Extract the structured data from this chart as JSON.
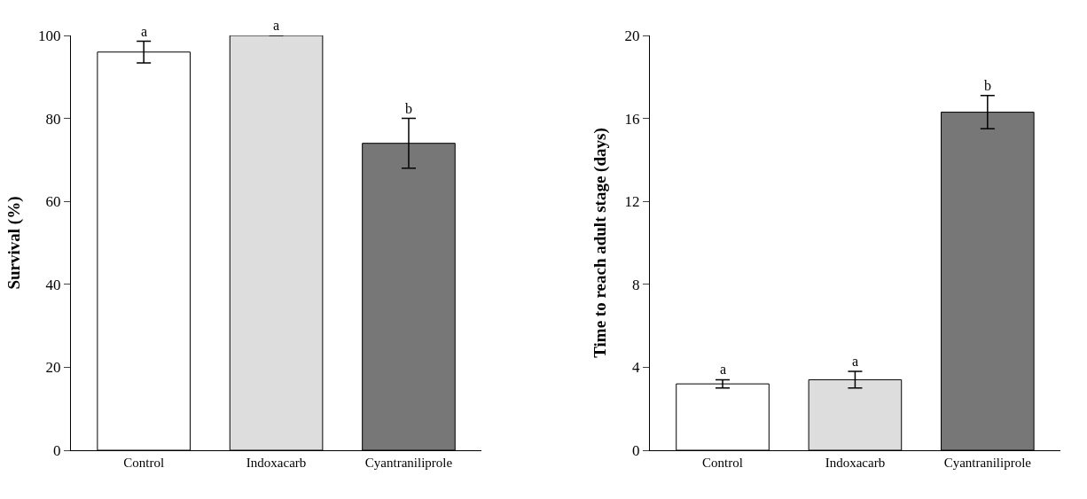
{
  "chart_data": [
    {
      "type": "bar",
      "ylabel": "Survival (%)",
      "categories": [
        "Control",
        "Indoxacarb",
        "Cyantraniliprole"
      ],
      "values": [
        96,
        100,
        74
      ],
      "colors": [
        "#ffffff",
        "#dddddd",
        "#777777"
      ],
      "errors": [
        2.6,
        null,
        6
      ],
      "ylim": [
        0,
        100
      ],
      "yticks": [
        0,
        20,
        40,
        60,
        80,
        100
      ],
      "annotations": [
        {
          "text": "a",
          "x": "Control",
          "y": 98.6
        },
        {
          "text": "a",
          "x": "Indoxacarb",
          "y": 100
        },
        {
          "text": "b",
          "x": "Cyantraniliprole",
          "y": 80
        }
      ]
    },
    {
      "type": "bar",
      "ylabel": "Time to reach adult stage (days)",
      "categories": [
        "Control",
        "Indoxacarb",
        "Cyantraniliprole"
      ],
      "values": [
        3.2,
        3.4,
        16.3
      ],
      "colors": [
        "#ffffff",
        "#dddddd",
        "#777777"
      ],
      "errors": [
        0.2,
        0.4,
        0.8
      ],
      "ylim": [
        0,
        20
      ],
      "yticks": [
        0,
        4,
        8,
        12,
        16,
        20
      ],
      "annotations": [
        {
          "text": "a",
          "x": "Control",
          "y": 3.4
        },
        {
          "text": "a",
          "x": "Indoxacarb",
          "y": 3.8
        },
        {
          "text": "b",
          "x": "Cyantraniliprole",
          "y": 17.1
        }
      ]
    }
  ]
}
